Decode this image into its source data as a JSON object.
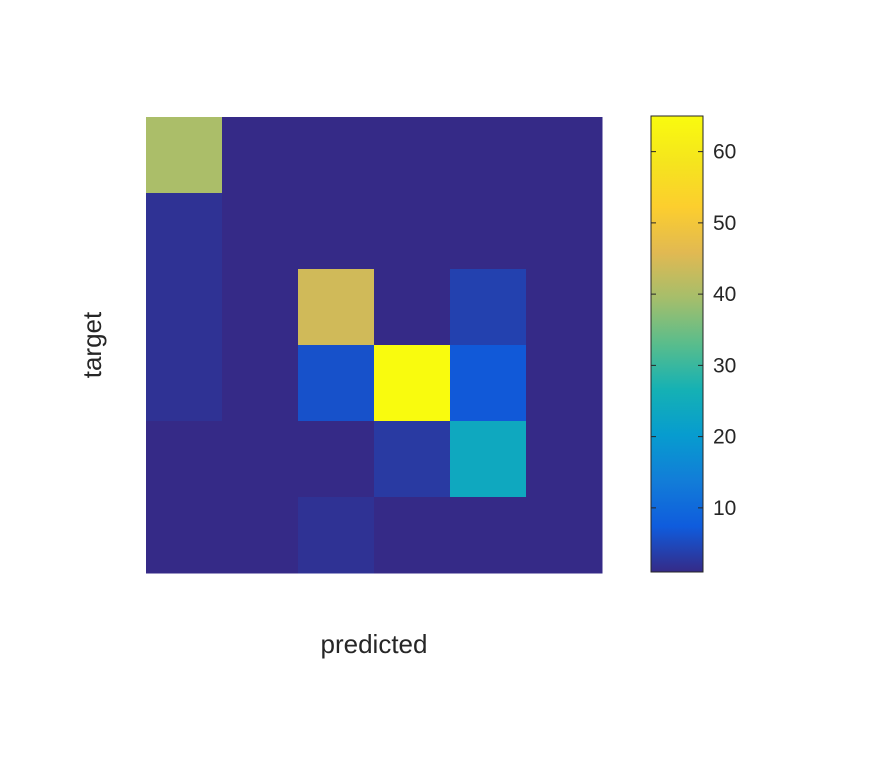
{
  "chart_data": {
    "type": "heatmap",
    "title": "",
    "xlabel": "predicted",
    "ylabel": "target",
    "rows": 6,
    "cols": 6,
    "values": [
      [
        40,
        1,
        1,
        1,
        1,
        1
      ],
      [
        2,
        1,
        1,
        1,
        1,
        1
      ],
      [
        2,
        1,
        44,
        1,
        4,
        1
      ],
      [
        2,
        1,
        6,
        65,
        7,
        1
      ],
      [
        1,
        1,
        1,
        3,
        24,
        1
      ],
      [
        1,
        1,
        2,
        1,
        1,
        1
      ]
    ],
    "colorbar": {
      "min": 1,
      "max": 65,
      "ticks": [
        10,
        20,
        30,
        40,
        50,
        60
      ],
      "tick_labels": [
        "10",
        "20",
        "30",
        "40",
        "50",
        "60"
      ],
      "colormap": "parula"
    },
    "grid": false,
    "tick_labels_visible": false
  }
}
